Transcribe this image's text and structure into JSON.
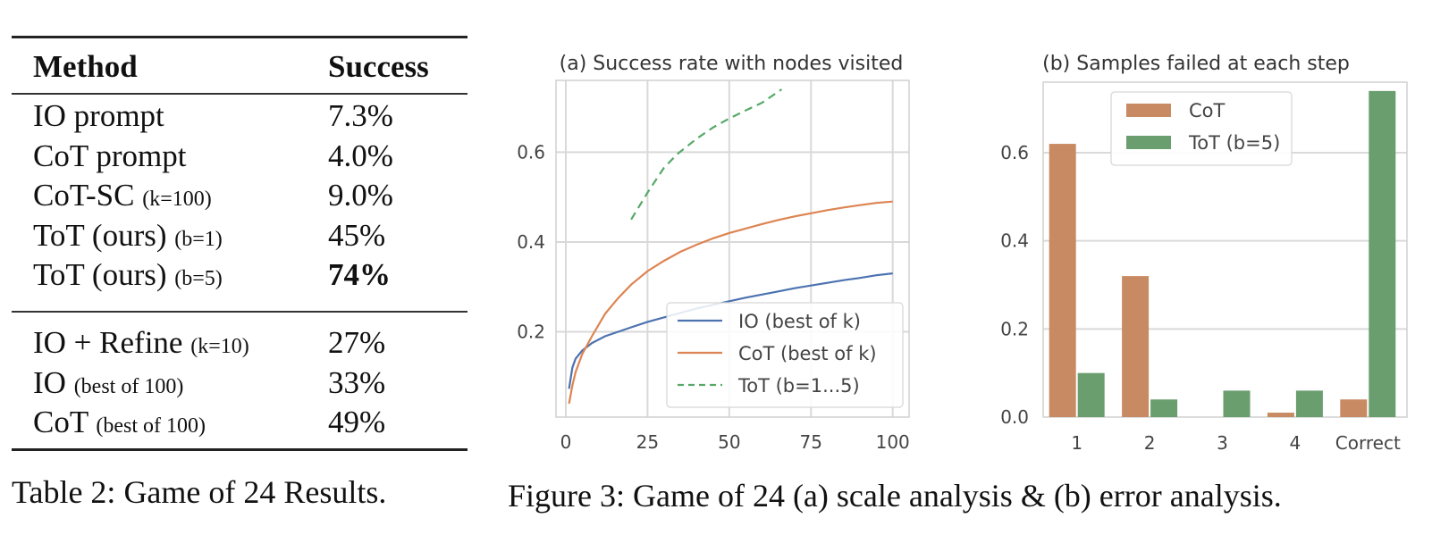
{
  "table": {
    "headers": {
      "method": "Method",
      "success": "Success"
    },
    "groups": [
      [
        {
          "method": "IO prompt",
          "note": "",
          "success": "7.3%",
          "bold": false
        },
        {
          "method": "CoT prompt",
          "note": "",
          "success": "4.0%",
          "bold": false
        },
        {
          "method": "CoT-SC",
          "note": "(k=100)",
          "success": "9.0%",
          "bold": false
        },
        {
          "method": "ToT (ours)",
          "note": "(b=1)",
          "success": "45%",
          "bold": false
        },
        {
          "method": "ToT (ours)",
          "note": "(b=5)",
          "success": "74%",
          "bold": true
        }
      ],
      [
        {
          "method": "IO + Refine",
          "note": "(k=10)",
          "success": "27%",
          "bold": false
        },
        {
          "method": "IO",
          "note": "(best of 100)",
          "success": "33%",
          "bold": false
        },
        {
          "method": "CoT",
          "note": "(best of 100)",
          "success": "49%",
          "bold": false
        }
      ]
    ],
    "caption": "Table 2: Game of 24 Results."
  },
  "figure_caption": "Figure 3: Game of 24 (a) scale analysis & (b) error analysis.",
  "chart_data": [
    {
      "type": "line",
      "title": "(a) Success rate with nodes visited",
      "xlabel": "",
      "ylabel": "",
      "xlim": [
        -3,
        105
      ],
      "ylim": [
        0.01,
        0.76
      ],
      "xticks": [
        0,
        25,
        50,
        75,
        100
      ],
      "yticks": [
        0.2,
        0.4,
        0.6
      ],
      "ytick_labels": [
        "0.2",
        "0.4",
        "0.6"
      ],
      "grid": true,
      "legend_position": "lower-right",
      "series": [
        {
          "name": "IO (best of k)",
          "color": "#4c72b0",
          "style": "solid",
          "x": [
            1,
            2,
            3,
            5,
            8,
            12,
            16,
            20,
            25,
            30,
            35,
            40,
            45,
            50,
            55,
            60,
            65,
            70,
            75,
            80,
            85,
            90,
            95,
            100
          ],
          "y": [
            0.073,
            0.12,
            0.14,
            0.158,
            0.175,
            0.19,
            0.2,
            0.21,
            0.222,
            0.232,
            0.242,
            0.252,
            0.26,
            0.268,
            0.276,
            0.283,
            0.29,
            0.297,
            0.303,
            0.309,
            0.315,
            0.32,
            0.326,
            0.33
          ]
        },
        {
          "name": "CoT (best of k)",
          "color": "#dd8452",
          "style": "solid",
          "x": [
            1,
            2,
            3,
            5,
            8,
            12,
            16,
            20,
            25,
            30,
            35,
            40,
            45,
            50,
            55,
            60,
            65,
            70,
            75,
            80,
            85,
            90,
            95,
            100
          ],
          "y": [
            0.04,
            0.08,
            0.11,
            0.15,
            0.19,
            0.24,
            0.275,
            0.305,
            0.335,
            0.358,
            0.378,
            0.394,
            0.408,
            0.42,
            0.43,
            0.44,
            0.449,
            0.457,
            0.464,
            0.471,
            0.477,
            0.482,
            0.487,
            0.49
          ]
        },
        {
          "name": "ToT (b=1...5)",
          "color": "#55a868",
          "style": "dashed",
          "x": [
            20,
            25,
            30,
            34,
            40,
            45,
            50,
            55,
            60,
            66
          ],
          "y": [
            0.45,
            0.51,
            0.565,
            0.595,
            0.63,
            0.655,
            0.675,
            0.693,
            0.71,
            0.74
          ]
        }
      ]
    },
    {
      "type": "bar",
      "title": "(b) Samples failed at each step",
      "xlabel": "",
      "ylabel": "",
      "categories": [
        "1",
        "2",
        "3",
        "4",
        "Correct"
      ],
      "ylim": [
        0,
        0.76
      ],
      "yticks": [
        0.0,
        0.2,
        0.4,
        0.6
      ],
      "ytick_labels": [
        "0.0",
        "0.2",
        "0.4",
        "0.6"
      ],
      "grid": true,
      "legend_position": "upper-center",
      "series": [
        {
          "name": "CoT",
          "color": "#c88a62",
          "values": [
            0.62,
            0.32,
            0.0,
            0.01,
            0.04
          ]
        },
        {
          "name": "ToT (b=5)",
          "color": "#6a9e6f",
          "values": [
            0.1,
            0.04,
            0.06,
            0.06,
            0.74
          ]
        }
      ]
    }
  ]
}
